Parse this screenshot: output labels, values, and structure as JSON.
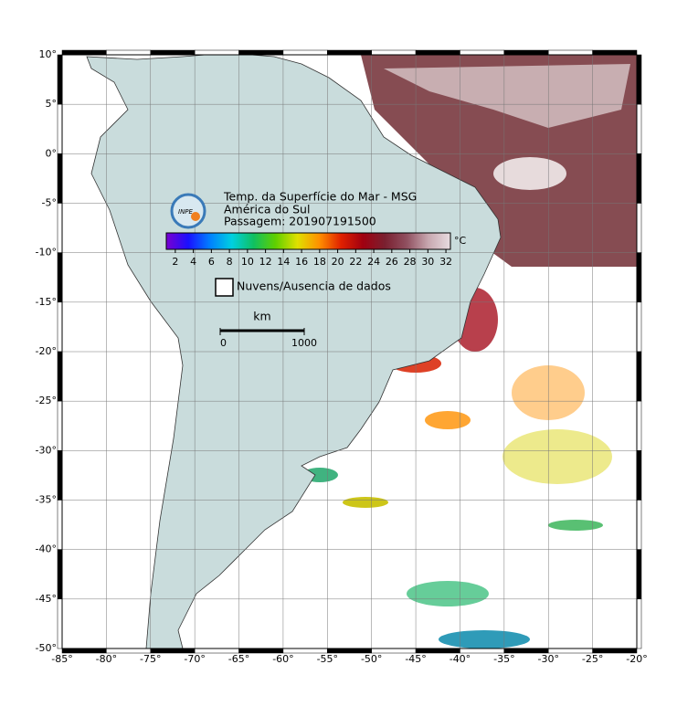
{
  "header": {
    "logo": "INPE",
    "title": "Temp. da Superfície do Mar - MSG",
    "region": "América do Sul",
    "pass": "Passagem: 201907191500"
  },
  "colorbar": {
    "unit": "°C",
    "range": [
      1,
      32.5
    ],
    "ticks": [
      2,
      4,
      6,
      8,
      10,
      12,
      14,
      16,
      18,
      20,
      22,
      24,
      26,
      28,
      30,
      32
    ],
    "colors": [
      "#7a00d0",
      "#1a10ff",
      "#0080ff",
      "#00d0e0",
      "#10c060",
      "#60d000",
      "#e0e000",
      "#ff9000",
      "#e02000",
      "#a00010",
      "#7a2030",
      "#905060",
      "#c8a8b0",
      "#e8dce0"
    ]
  },
  "legend": {
    "label": "Nuvens/Ausencia de dados"
  },
  "scale": {
    "unit": "km",
    "ticks": [
      0,
      1000
    ]
  },
  "map": {
    "lonlim": [
      -85,
      -20
    ],
    "latlim": [
      -50,
      10
    ],
    "grid": true,
    "lon_ticks": [
      {
        "value": -85,
        "label": "-85°"
      },
      {
        "value": -80,
        "label": "-80°"
      },
      {
        "value": -75,
        "label": "-75°"
      },
      {
        "value": -70,
        "label": "-70°"
      },
      {
        "value": -65,
        "label": "-65°"
      },
      {
        "value": -60,
        "label": "-60°"
      },
      {
        "value": -55,
        "label": "-55°"
      },
      {
        "value": -50,
        "label": "-50°"
      },
      {
        "value": -45,
        "label": "-45°"
      },
      {
        "value": -40,
        "label": "-40°"
      },
      {
        "value": -35,
        "label": "-35°"
      },
      {
        "value": -30,
        "label": "-30°"
      },
      {
        "value": -25,
        "label": "-25°"
      },
      {
        "value": -20,
        "label": "-20°"
      }
    ],
    "lat_ticks": [
      {
        "value": 10,
        "label": "10°"
      },
      {
        "value": 5,
        "label": "5°"
      },
      {
        "value": 0,
        "label": "0°"
      },
      {
        "value": -5,
        "label": "-5°"
      },
      {
        "value": -10,
        "label": "-10°"
      },
      {
        "value": -15,
        "label": "-15°"
      },
      {
        "value": -20,
        "label": "-20°"
      },
      {
        "value": -25,
        "label": "-25°"
      },
      {
        "value": -30,
        "label": "-30°"
      },
      {
        "value": -35,
        "label": "-35°"
      },
      {
        "value": -40,
        "label": "-40°"
      },
      {
        "value": -45,
        "label": "-45°"
      },
      {
        "value": -50,
        "label": "-50°"
      }
    ]
  }
}
